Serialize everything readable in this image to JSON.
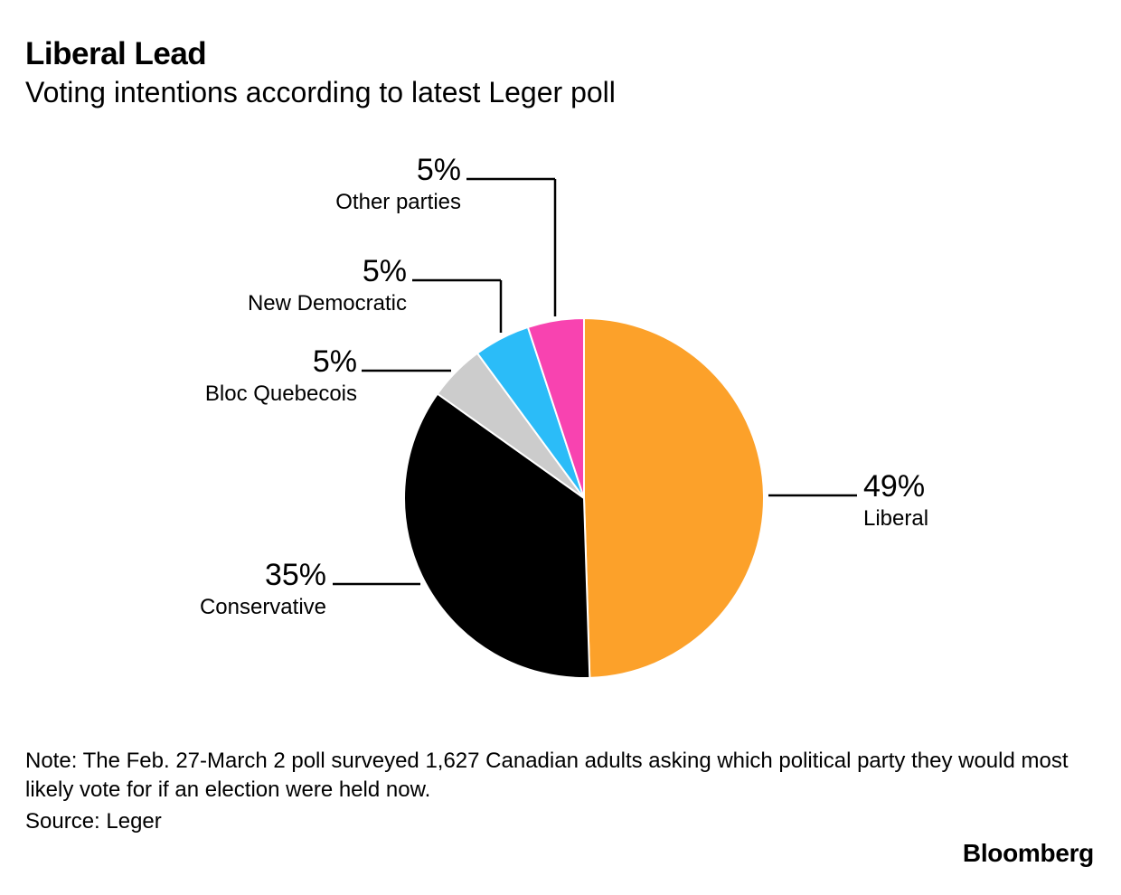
{
  "title": "Liberal Lead",
  "subtitle": "Voting intentions according to latest Leger poll",
  "note": "Note: The Feb. 27-March 2 poll surveyed 1,627 Canadian adults asking which political party they would most likely vote for if an election were held now.",
  "source": "Source: Leger",
  "brand": "Bloomberg",
  "chart_data": {
    "type": "pie",
    "unit": "%",
    "slices": [
      {
        "name": "Liberal",
        "value": 49,
        "label": "49%",
        "color": "#fca12a"
      },
      {
        "name": "Conservative",
        "value": 35,
        "label": "35%",
        "color": "#000000"
      },
      {
        "name": "Bloc Quebecois",
        "value": 5,
        "label": "5%",
        "color": "#cccccc"
      },
      {
        "name": "New Democratic",
        "value": 5,
        "label": "5%",
        "color": "#2bbcf8"
      },
      {
        "name": "Other parties",
        "value": 5,
        "label": "5%",
        "color": "#f843b0"
      }
    ]
  }
}
